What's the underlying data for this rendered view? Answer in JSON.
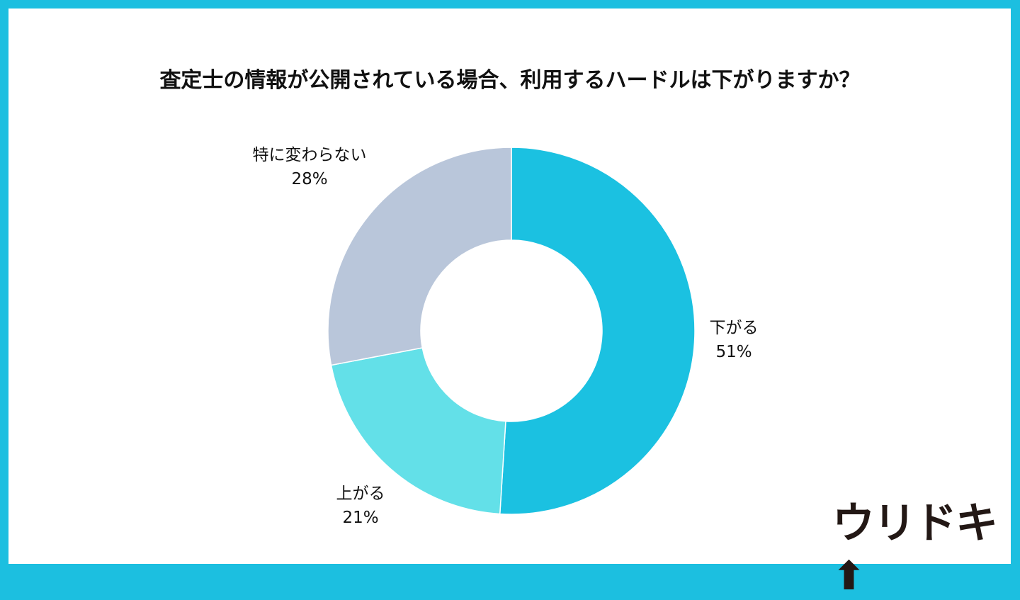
{
  "chart_data": {
    "type": "pie",
    "variant": "donut",
    "title": "査定士の情報が公開されている場合、利用するハードルは下がりますか？",
    "slices": [
      {
        "label": "下がる",
        "value": 51,
        "display": "51%",
        "color": "#1bc1e1"
      },
      {
        "label": "上がる",
        "value": 21,
        "display": "21%",
        "color": "#63e0e8"
      },
      {
        "label": "特に変わらない",
        "value": 28,
        "display": "28%",
        "color": "#b9c6da"
      }
    ],
    "start": "top",
    "direction": "clockwise"
  },
  "frame_color": "#1cbfe0",
  "logo": {
    "text": "ウリドキ",
    "arrow": "up-arrow-icon"
  }
}
